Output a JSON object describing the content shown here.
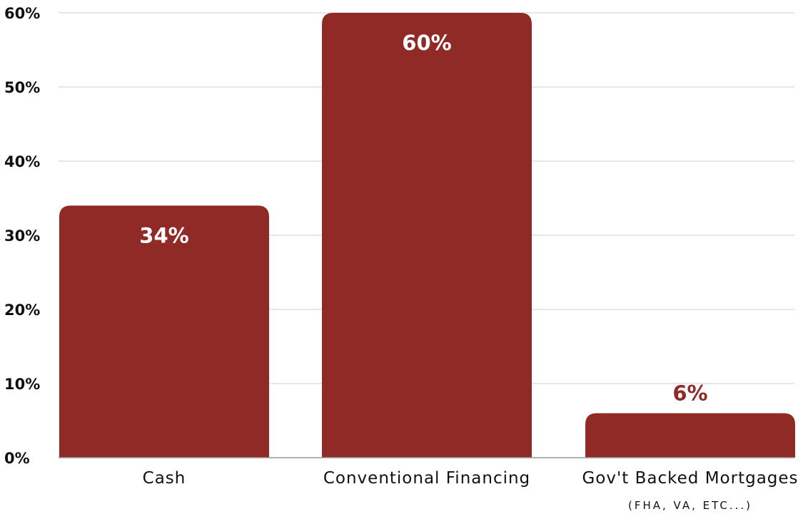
{
  "chart_data": {
    "type": "bar",
    "categories": [
      "Cash",
      "Conventional Financing",
      "Gov't Backed Mortgages"
    ],
    "category_sublabels": [
      "",
      "",
      "(FHA, VA, ETC...)"
    ],
    "values": [
      34,
      60,
      6
    ],
    "data_labels": [
      "34%",
      "60%",
      "6%"
    ],
    "ylim": [
      0,
      60
    ],
    "y_ticks": [
      0,
      10,
      20,
      30,
      40,
      50,
      60
    ],
    "y_tick_labels": [
      "0%",
      "10%",
      "20%",
      "30%",
      "40%",
      "50%",
      "60%"
    ],
    "title": "",
    "xlabel": "",
    "ylabel": "",
    "grid": true,
    "legend": "none",
    "colors": {
      "bar": "#8f2a27",
      "label_inside": "#ffffff",
      "label_outside": "#8f2a27",
      "grid": "#cfcfcf",
      "text": "#111111"
    }
  }
}
